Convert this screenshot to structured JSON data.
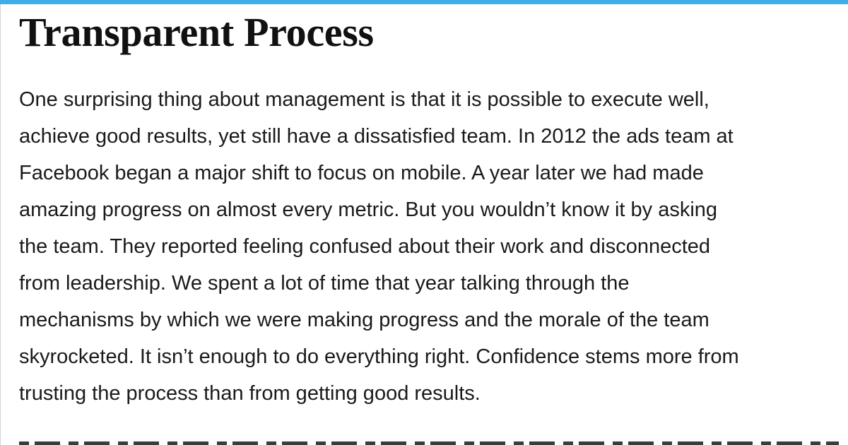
{
  "accent_color": "#3daee9",
  "article": {
    "title": "Transparent Process",
    "paragraph_lines": [
      "One surprising thing about management is that it is possible to execute well,",
      "achieve good results, yet still have a dissatisfied team. In 2012 the ads team at",
      "Facebook began a major shift to focus on mobile. A year later we had made",
      "amazing progress on almost every metric. But you wouldn’t know it by asking",
      "the team. They reported feeling confused about their work and disconnected",
      "from leadership. We spent a lot of time that year talking through the",
      "mechanisms by which we were making progress and the morale of the team",
      "skyrocketed. It isn’t enough to do everything right. Confidence stems more from",
      "trusting the process than from getting good results."
    ]
  }
}
